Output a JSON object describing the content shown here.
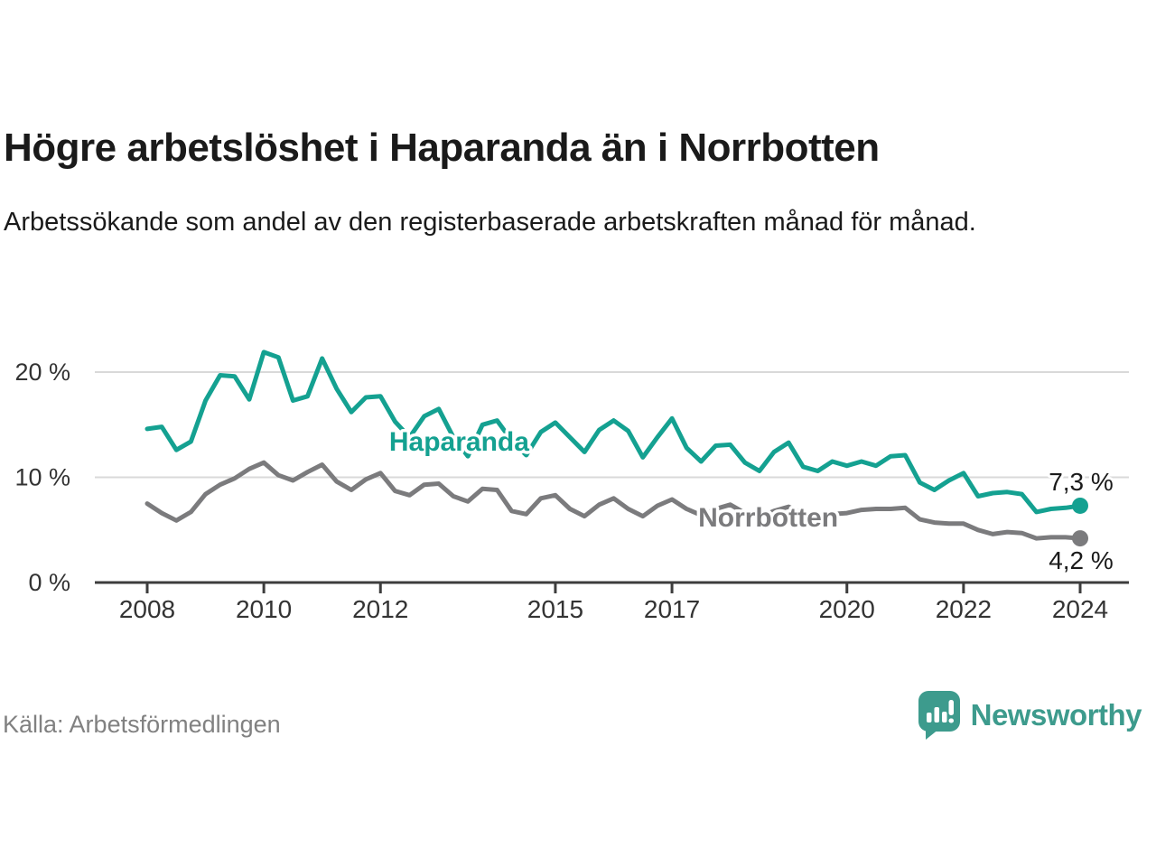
{
  "header": {
    "title": "Högre arbetslöshet i Haparanda än i Norrbotten",
    "subtitle": "Arbetssökande som andel av den registerbaserade arbetskraften månad för månad."
  },
  "chart_data": {
    "type": "line",
    "xlabel": "",
    "ylabel": "",
    "xlim": [
      2008,
      2024.1
    ],
    "ylim": [
      0,
      22.5
    ],
    "grid": "horizontal",
    "x_ticks": [
      {
        "value": 2008,
        "label": "2008"
      },
      {
        "value": 2010,
        "label": "2010"
      },
      {
        "value": 2012,
        "label": "2012"
      },
      {
        "value": 2015,
        "label": "2015"
      },
      {
        "value": 2017,
        "label": "2017"
      },
      {
        "value": 2020,
        "label": "2020"
      },
      {
        "value": 2022,
        "label": "2022"
      },
      {
        "value": 2024,
        "label": "2024"
      }
    ],
    "y_ticks": [
      {
        "value": 0,
        "label": "0 %"
      },
      {
        "value": 10,
        "label": "10 %"
      },
      {
        "value": 20,
        "label": "20 %"
      }
    ],
    "x": [
      2008,
      2008.25,
      2008.5,
      2008.75,
      2009,
      2009.25,
      2009.5,
      2009.75,
      2010,
      2010.25,
      2010.5,
      2010.75,
      2011,
      2011.25,
      2011.5,
      2011.75,
      2012,
      2012.25,
      2012.5,
      2012.75,
      2013,
      2013.25,
      2013.5,
      2013.75,
      2014,
      2014.25,
      2014.5,
      2014.75,
      2015,
      2015.25,
      2015.5,
      2015.75,
      2016,
      2016.25,
      2016.5,
      2016.75,
      2017,
      2017.25,
      2017.5,
      2017.75,
      2018,
      2018.25,
      2018.5,
      2018.75,
      2019,
      2019.25,
      2019.5,
      2019.75,
      2020,
      2020.25,
      2020.5,
      2020.75,
      2021,
      2021.25,
      2021.5,
      2021.75,
      2022,
      2022.25,
      2022.5,
      2022.75,
      2023,
      2023.25,
      2023.5,
      2023.75,
      2024
    ],
    "series": [
      {
        "name": "Haparanda",
        "color": "#14a191",
        "values": [
          14.6,
          14.8,
          12.6,
          13.4,
          17.3,
          19.7,
          19.6,
          17.4,
          21.9,
          21.4,
          17.3,
          17.7,
          21.3,
          18.4,
          16.2,
          17.6,
          17.7,
          15.3,
          13.8,
          15.8,
          16.5,
          13.8,
          12.0,
          15.0,
          15.4,
          13.5,
          12.1,
          14.3,
          15.2,
          13.8,
          12.4,
          14.5,
          15.4,
          14.4,
          11.9,
          13.8,
          15.6,
          12.8,
          11.5,
          13.0,
          13.1,
          11.4,
          10.6,
          12.4,
          13.3,
          11.0,
          10.6,
          11.5,
          11.1,
          11.5,
          11.1,
          12.0,
          12.1,
          9.5,
          8.8,
          9.7,
          10.4,
          8.2,
          8.5,
          8.6,
          8.4,
          6.7,
          7.0,
          7.1,
          7.3
        ],
        "end_label": "7,3 %",
        "end_label_position": "above",
        "label_pos": {
          "x": 2013.35,
          "y": 13.4
        }
      },
      {
        "name": "Norrbotten",
        "color": "#7b7b7d",
        "values": [
          7.5,
          6.6,
          5.9,
          6.7,
          8.4,
          9.3,
          9.9,
          10.8,
          11.4,
          10.2,
          9.7,
          10.5,
          11.2,
          9.6,
          8.8,
          9.8,
          10.4,
          8.7,
          8.3,
          9.3,
          9.4,
          8.2,
          7.7,
          8.9,
          8.8,
          6.8,
          6.5,
          8.0,
          8.3,
          7.0,
          6.3,
          7.4,
          8.0,
          7.0,
          6.3,
          7.3,
          7.9,
          7.0,
          6.4,
          7.0,
          7.4,
          6.6,
          6.2,
          6.8,
          7.2,
          6.5,
          6.3,
          6.5,
          6.6,
          6.9,
          7.0,
          7.0,
          7.1,
          6.0,
          5.7,
          5.6,
          5.6,
          5.0,
          4.6,
          4.8,
          4.7,
          4.2,
          4.3,
          4.3,
          4.2
        ],
        "end_label": "4,2 %",
        "end_label_position": "below",
        "label_pos": {
          "x": 2018.65,
          "y": 6.2
        }
      }
    ]
  },
  "footer": {
    "source": "Källa: Arbetsförmedlingen",
    "brand": "Newsworthy",
    "brand_color": "#3d9b8d",
    "logo_icon": "speech-bubble-bar-chart"
  }
}
